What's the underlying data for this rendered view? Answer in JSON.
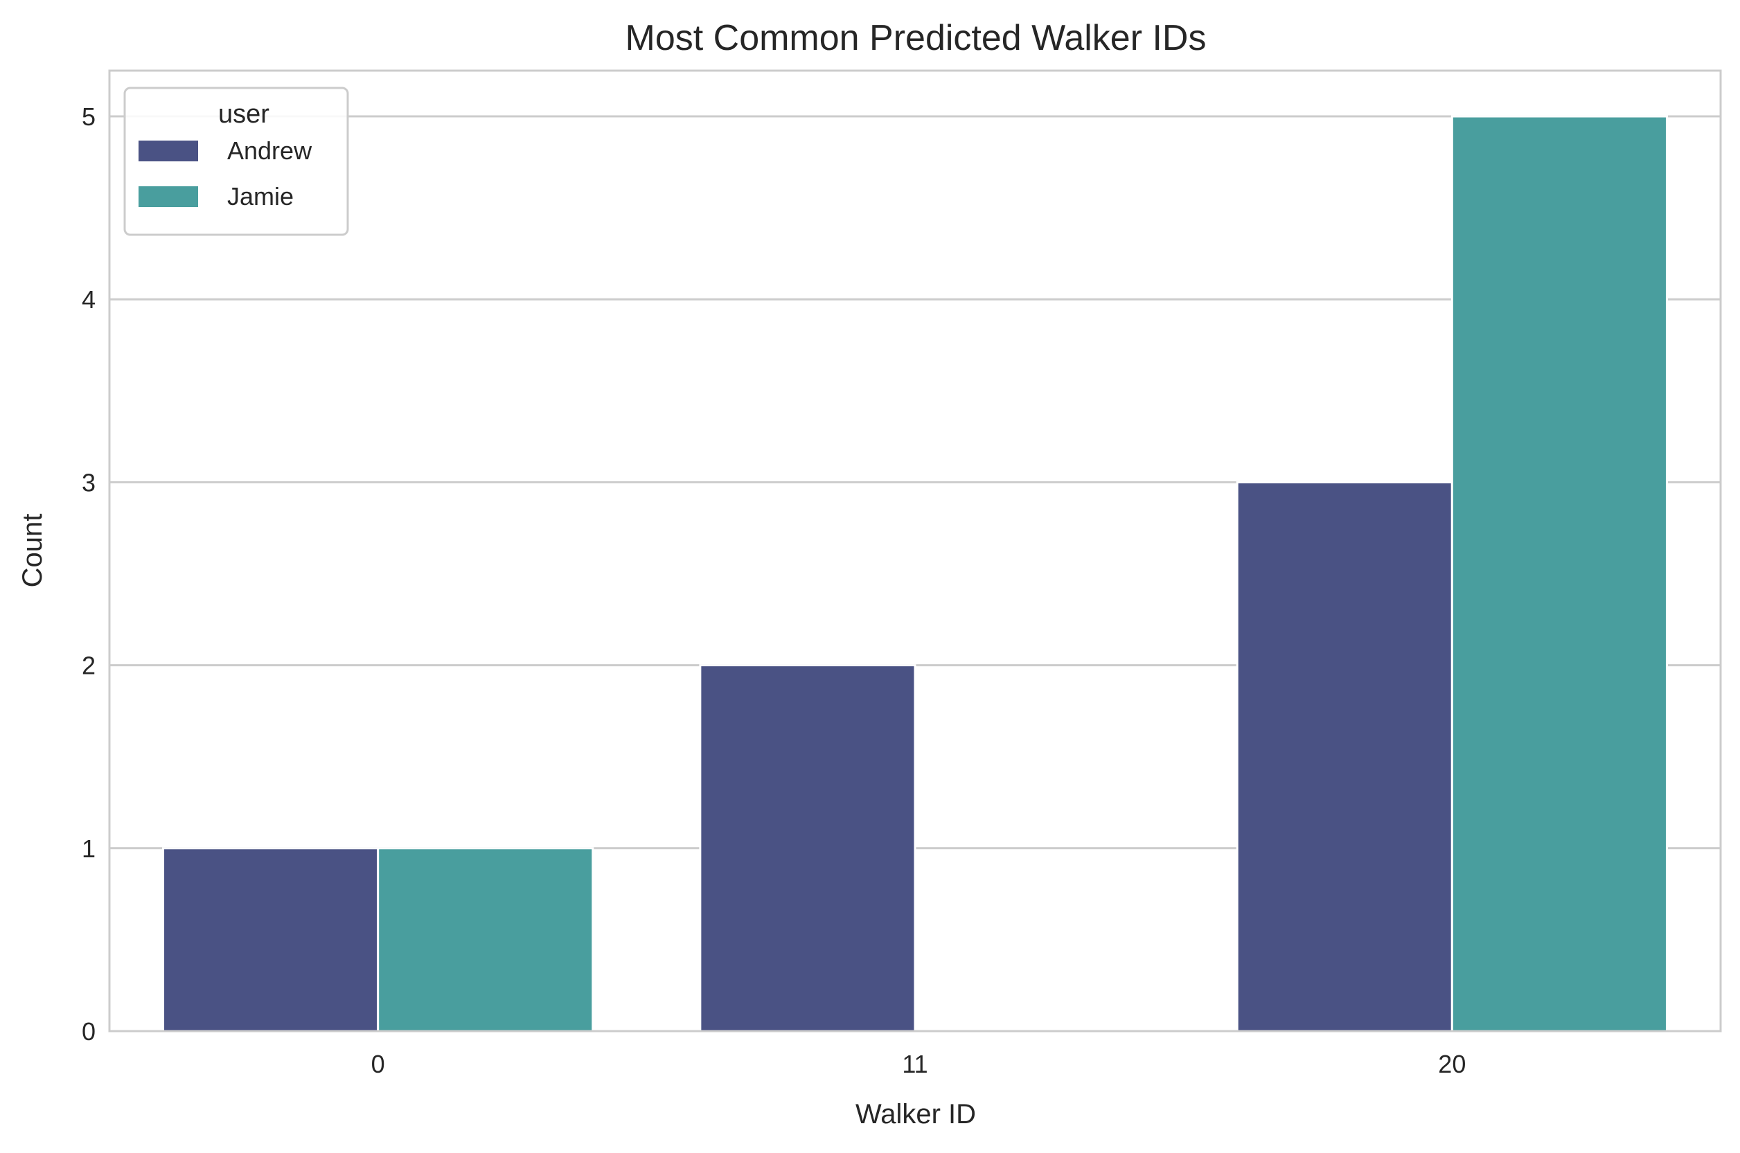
{
  "chart_data": {
    "type": "bar",
    "title": "Most Common Predicted Walker IDs",
    "xlabel": "Walker ID",
    "ylabel": "Count",
    "categories": [
      "0",
      "11",
      "20"
    ],
    "series": [
      {
        "name": "Andrew",
        "values": [
          1,
          2,
          3
        ],
        "color": "#4a5284"
      },
      {
        "name": "Jamie",
        "values": [
          1,
          0,
          5
        ],
        "color": "#499e9e"
      }
    ],
    "ylim": [
      0,
      5.25
    ],
    "yticks": [
      0,
      1,
      2,
      3,
      4,
      5
    ],
    "grid": true,
    "legend": {
      "title": "user",
      "position": "top-left"
    }
  }
}
